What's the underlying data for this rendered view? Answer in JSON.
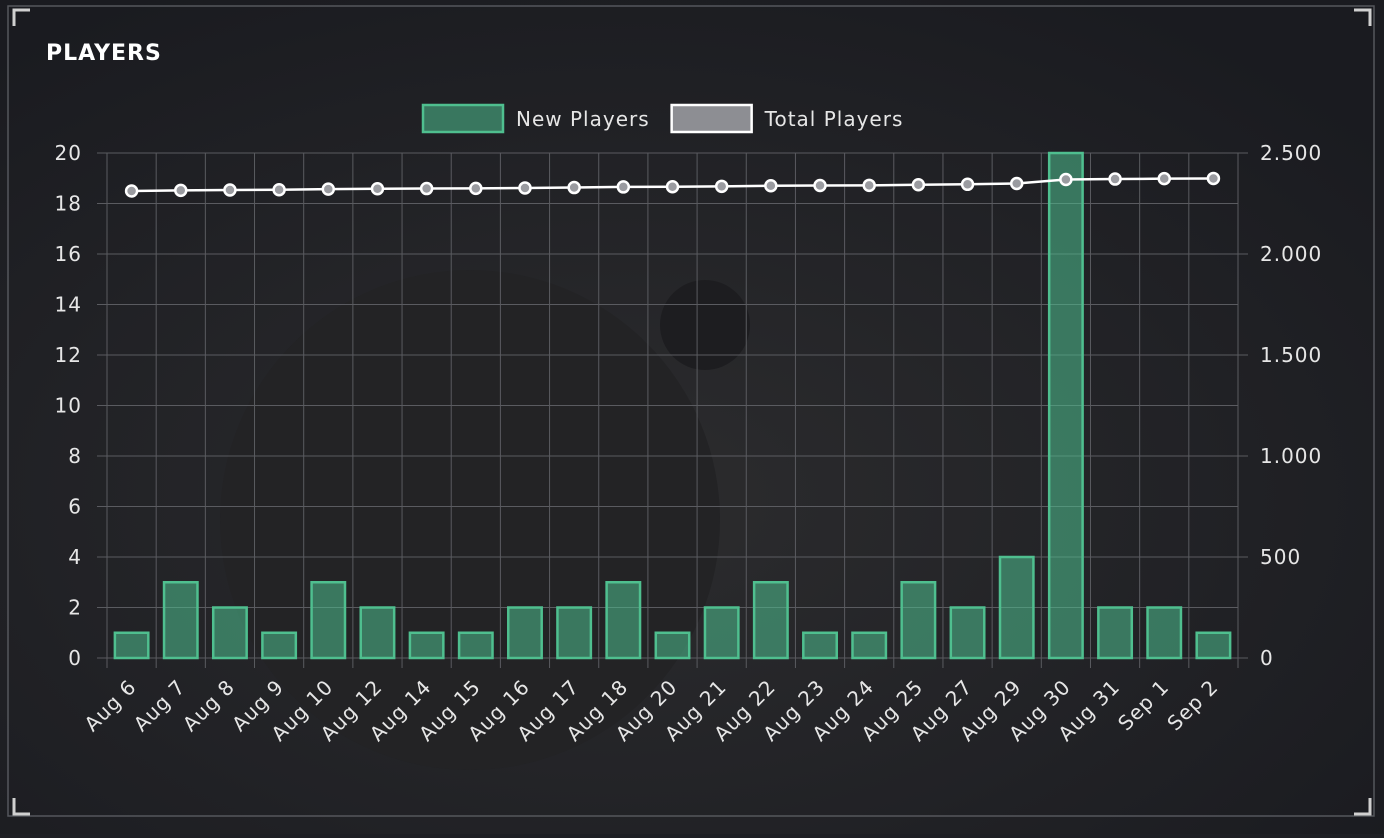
{
  "chart_data": {
    "type": "bar",
    "title": "PLAYERS",
    "categories": [
      "Aug 6",
      "Aug 7",
      "Aug 8",
      "Aug 9",
      "Aug 10",
      "Aug 12",
      "Aug 14",
      "Aug 15",
      "Aug 16",
      "Aug 17",
      "Aug 18",
      "Aug 20",
      "Aug 21",
      "Aug 22",
      "Aug 23",
      "Aug 24",
      "Aug 25",
      "Aug 27",
      "Aug 29",
      "Aug 30",
      "Aug 31",
      "Sep 1",
      "Sep 2"
    ],
    "series": [
      {
        "name": "New Players",
        "type": "bar",
        "color": "#4fbf8f",
        "values": [
          1,
          3,
          2,
          1,
          3,
          2,
          1,
          1,
          2,
          2,
          3,
          1,
          2,
          3,
          1,
          1,
          3,
          2,
          4,
          20,
          2,
          2,
          1
        ]
      },
      {
        "name": "Total Players",
        "type": "line",
        "axis": "y2",
        "color": "#ffffff",
        "values": [
          2312,
          2315,
          2317,
          2318,
          2321,
          2323,
          2324,
          2325,
          2327,
          2329,
          2332,
          2333,
          2335,
          2338,
          2339,
          2340,
          2343,
          2345,
          2349,
          2369,
          2371,
          2373,
          2374
        ]
      }
    ],
    "ylim": [
      0,
      20
    ],
    "yticks": [
      0,
      2,
      4,
      6,
      8,
      10,
      12,
      14,
      16,
      18,
      20
    ],
    "y2lim": [
      0,
      2500
    ],
    "y2ticks": [
      0,
      500,
      {
        "value": 1000,
        "label": "1.000"
      },
      {
        "value": 1500,
        "label": "1.500"
      },
      {
        "value": 2000,
        "label": "2.000"
      },
      {
        "value": 2500,
        "label": "2.500"
      }
    ],
    "grid": true,
    "legend": "top"
  }
}
